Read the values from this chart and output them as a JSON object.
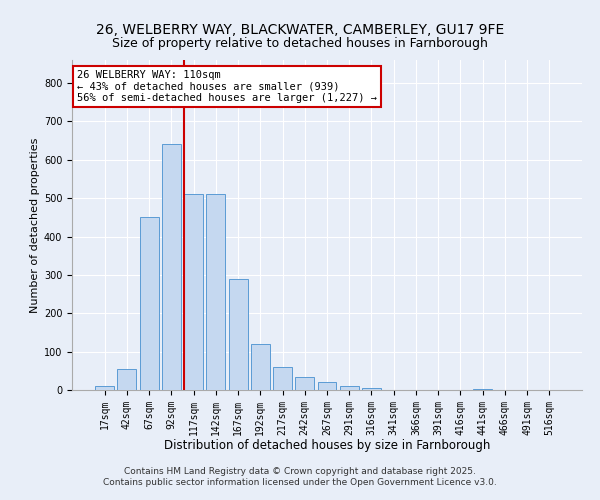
{
  "title1": "26, WELBERRY WAY, BLACKWATER, CAMBERLEY, GU17 9FE",
  "title2": "Size of property relative to detached houses in Farnborough",
  "xlabel": "Distribution of detached houses by size in Farnborough",
  "ylabel": "Number of detached properties",
  "categories": [
    "17sqm",
    "42sqm",
    "67sqm",
    "92sqm",
    "117sqm",
    "142sqm",
    "167sqm",
    "192sqm",
    "217sqm",
    "242sqm",
    "267sqm",
    "291sqm",
    "316sqm",
    "341sqm",
    "366sqm",
    "391sqm",
    "416sqm",
    "441sqm",
    "466sqm",
    "491sqm",
    "516sqm"
  ],
  "values": [
    10,
    55,
    450,
    640,
    510,
    510,
    290,
    120,
    60,
    35,
    20,
    10,
    5,
    0,
    0,
    0,
    0,
    2,
    0,
    0,
    0
  ],
  "bar_color": "#c5d8f0",
  "bar_edge_color": "#5b9bd5",
  "vline_color": "#cc0000",
  "vline_index": 3.575,
  "annotation_text": "26 WELBERRY WAY: 110sqm\n← 43% of detached houses are smaller (939)\n56% of semi-detached houses are larger (1,227) →",
  "annotation_box_color": "#ffffff",
  "annotation_box_edge": "#cc0000",
  "ylim": [
    0,
    860
  ],
  "yticks": [
    0,
    100,
    200,
    300,
    400,
    500,
    600,
    700,
    800
  ],
  "bg_color": "#e8eef8",
  "fig_bg_color": "#e8eef8",
  "footer1": "Contains HM Land Registry data © Crown copyright and database right 2025.",
  "footer2": "Contains public sector information licensed under the Open Government Licence v3.0.",
  "title1_fontsize": 10,
  "title2_fontsize": 9,
  "xlabel_fontsize": 8.5,
  "ylabel_fontsize": 8,
  "tick_fontsize": 7,
  "footer_fontsize": 6.5,
  "annot_fontsize": 7.5
}
